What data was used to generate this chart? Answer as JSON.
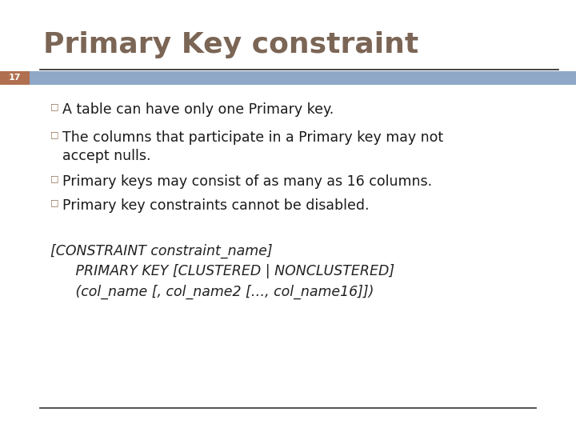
{
  "title": "Primary Key constraint",
  "title_color": "#7B6555",
  "slide_number": "17",
  "slide_number_bg": "#8FA8C8",
  "slide_number_badge_color": "#B07050",
  "header_line_color": "#222222",
  "bullet_points": [
    "A table can have only one Primary key.",
    "The columns that participate in a Primary key may not\naccept nulls.",
    "Primary keys may consist of as many as 16 columns.",
    "Primary key constraints cannot be disabled."
  ],
  "bullet_color": "#8B6F4E",
  "code_lines": [
    "[CONSTRAINT constraint_name]",
    "   PRIMARY KEY [CLUSTERED | NONCLUSTERED]",
    "   (col_name [, col_name2 […, col_name16]])"
  ],
  "code_color": "#222222",
  "bg_color": "#FFFFFF",
  "footer_line_color": "#333333"
}
